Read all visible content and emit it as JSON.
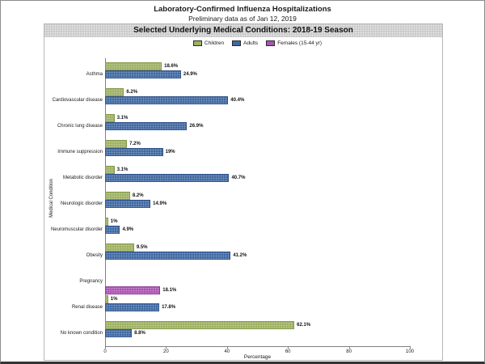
{
  "header": {
    "title": "Laboratory-Confirmed Influenza Hospitalizations",
    "subtitle": "Preliminary data as of Jan 12, 2019",
    "banner": "Selected Underlying Medical Conditions: 2018-19 Season"
  },
  "legend": {
    "items": [
      {
        "label": "Children",
        "color": "#9DB161"
      },
      {
        "label": "Adults",
        "color": "#3F68A2"
      },
      {
        "label": "Females (15-44 yr)",
        "color": "#AC54B2"
      }
    ]
  },
  "chart_data": {
    "type": "bar",
    "orientation": "horizontal",
    "title": "Selected Underlying Medical Conditions: 2018-19 Season",
    "xlabel": "Percentage",
    "ylabel": "Medical Condition",
    "xlim": [
      0,
      100
    ],
    "xticks": [
      "0",
      "20",
      "40",
      "60",
      "80",
      "100"
    ],
    "grid": false,
    "legend_position": "top-center",
    "categories": [
      "Asthma",
      "Cardiovascular disease",
      "Chronic lung disease",
      "Immune suppression",
      "Metabolic disorder",
      "Neurologic disorder",
      "Neuromuscular disorder",
      "Obesity",
      "Pregnancy",
      "Renal disease",
      "No known condition"
    ],
    "series": [
      {
        "name": "Children",
        "key": "children",
        "color": "#9DB161",
        "border": "#86994e",
        "values": [
          18.6,
          6.2,
          3.1,
          7.2,
          3.1,
          8.2,
          1,
          9.5,
          null,
          1,
          62.1
        ],
        "labels": [
          "18.6%",
          "6.2%",
          "3.1%",
          "7.2%",
          "3.1%",
          "8.2%",
          "1%",
          "9.5%",
          null,
          "1%",
          "62.1%"
        ]
      },
      {
        "name": "Adults",
        "key": "adults",
        "color": "#3F68A2",
        "border": "#32548a",
        "values": [
          24.9,
          40.4,
          26.9,
          19,
          40.7,
          14.9,
          4.9,
          41.2,
          null,
          17.8,
          8.8
        ],
        "labels": [
          "24.9%",
          "40.4%",
          "26.9%",
          "19%",
          "40.7%",
          "14.9%",
          "4.9%",
          "41.2%",
          null,
          "17.8%",
          "8.8%"
        ]
      },
      {
        "name": "Females (15-44 yr)",
        "key": "females",
        "color": "#AC54B2",
        "border": "#8e3d96",
        "values": [
          null,
          null,
          null,
          null,
          null,
          null,
          null,
          null,
          18.1,
          null,
          null
        ],
        "labels": [
          null,
          null,
          null,
          null,
          null,
          null,
          null,
          null,
          "18.1%",
          null,
          null
        ]
      }
    ]
  }
}
